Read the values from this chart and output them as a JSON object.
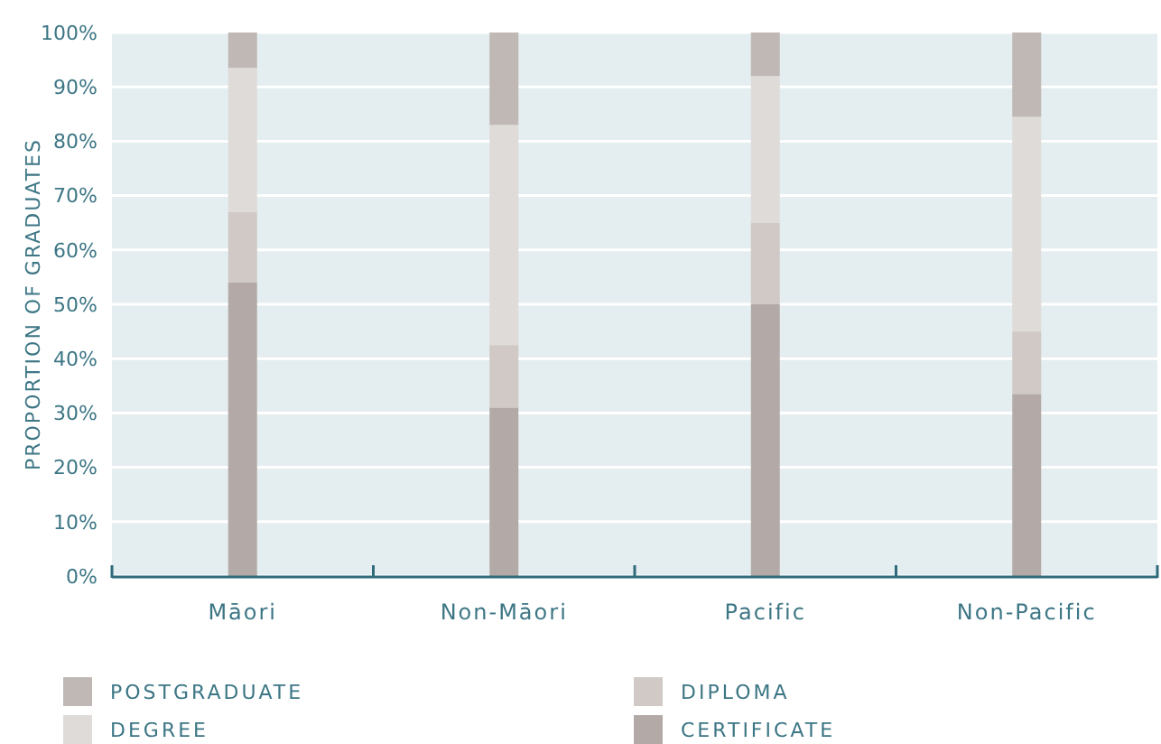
{
  "chart_data": {
    "type": "bar",
    "stacked": true,
    "ylabel": "PROPORTION OF GRADUATES",
    "categories": [
      "Māori",
      "Non-Māori",
      "Pacific",
      "Non-Pacific"
    ],
    "series": [
      {
        "name": "CERTIFICATE",
        "color": "#b3aaa7",
        "values": [
          54,
          31,
          50,
          33.5
        ]
      },
      {
        "name": "DIPLOMA",
        "color": "#d0c9c6",
        "values": [
          13,
          11.5,
          15,
          11.5
        ]
      },
      {
        "name": "DEGREE",
        "color": "#dfdbd9",
        "values": [
          26.5,
          40.5,
          27,
          39.5
        ]
      },
      {
        "name": "POSTGRADUATE",
        "color": "#c0b8b5",
        "values": [
          6.5,
          17,
          8,
          15.5
        ]
      }
    ],
    "ylim": [
      0,
      100
    ],
    "yticks": [
      {
        "value": 0,
        "label": "0%"
      },
      {
        "value": 10,
        "label": "10%"
      },
      {
        "value": 20,
        "label": "20%"
      },
      {
        "value": 30,
        "label": "30%"
      },
      {
        "value": 40,
        "label": "40%"
      },
      {
        "value": 50,
        "label": "50%"
      },
      {
        "value": 60,
        "label": "60%"
      },
      {
        "value": 70,
        "label": "70%"
      },
      {
        "value": 80,
        "label": "80%"
      },
      {
        "value": 90,
        "label": "90%"
      },
      {
        "value": 100,
        "label": "100%"
      }
    ],
    "grid": "y",
    "legend": "bottom"
  }
}
